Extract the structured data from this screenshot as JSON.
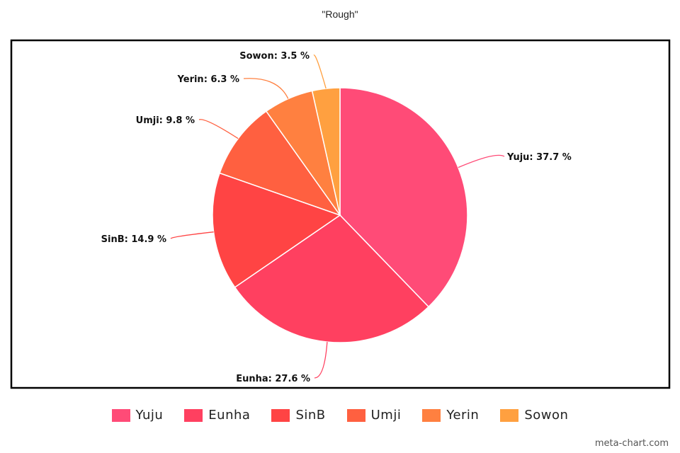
{
  "chart_data": {
    "type": "pie",
    "title": "\"Rough\"",
    "categories": [
      "Yuju",
      "Eunha",
      "SinB",
      "Umji",
      "Yerin",
      "Sowon"
    ],
    "values": [
      37.7,
      27.6,
      14.9,
      9.8,
      6.3,
      3.5
    ],
    "data_labels": [
      "Yuju: 37.7 %",
      "Eunha: 27.6 %",
      "SinB: 14.9 %",
      "Umji: 9.8 %",
      "Yerin: 6.3 %",
      "Sowon: 3.5 %"
    ],
    "colors": [
      "#ff4b77",
      "#ff4060",
      "#ff4444",
      "#ff6040",
      "#ff8040",
      "#ffa040"
    ],
    "legend_placement": "bottom",
    "start_angle": "top, clockwise"
  },
  "watermark": "meta-chart.com"
}
